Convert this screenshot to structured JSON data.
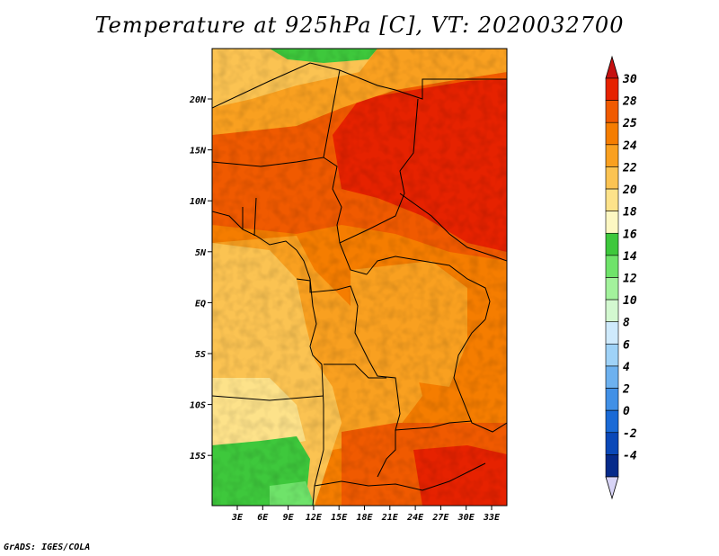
{
  "title": "Temperature at 925hPa [C], VT: 2020032700",
  "credit": "GrADS: IGES/COLA",
  "map": {
    "lon_ticks": [
      "3E",
      "6E",
      "9E",
      "12E",
      "15E",
      "18E",
      "21E",
      "24E",
      "27E",
      "30E",
      "33E"
    ],
    "lat_ticks": [
      "20N",
      "15N",
      "10N",
      "5N",
      "EQ",
      "5S",
      "10S",
      "15S"
    ]
  },
  "colorbar": {
    "labels": [
      "30",
      "28",
      "25",
      "24",
      "22",
      "20",
      "18",
      "16",
      "14",
      "12",
      "10",
      "8",
      "6",
      "4",
      "2",
      "0",
      "-2",
      "-4"
    ],
    "colors": [
      "#e62200",
      "#f05a00",
      "#f57d00",
      "#f9a020",
      "#fbc352",
      "#fde28a",
      "#fdf7c2",
      "#3ec83c",
      "#6fe36a",
      "#a3f29c",
      "#d3f8d0",
      "#cfeafc",
      "#9fd2f7",
      "#6db1ef",
      "#4190e6",
      "#1a6ad6",
      "#0a48b8",
      "#062a8a"
    ],
    "top_arrow_color": "#c51010",
    "bottom_arrow_color": "#d8d4f6"
  }
}
